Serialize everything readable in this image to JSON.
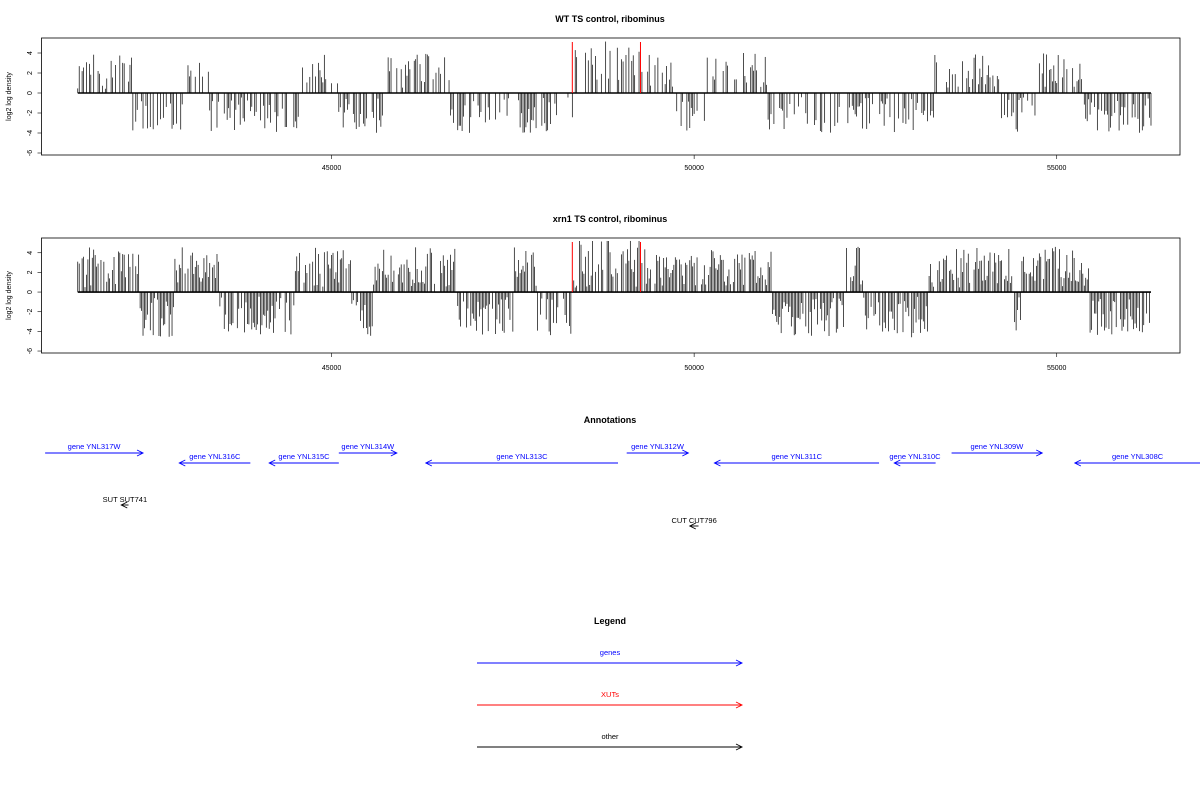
{
  "colors": {
    "gene": "#0000ff",
    "xut": "#ff0000",
    "other": "#000000",
    "frame": "#000000",
    "xut_marker": "#ff0000"
  },
  "chart_data": [
    {
      "type": "bar",
      "title": "WT TS control, ribominus",
      "ylabel": "log2 log density",
      "xlim": [
        41000,
        56700
      ],
      "ylim": [
        -6.2,
        5.5
      ],
      "xticks": [
        "45000",
        "50000",
        "55000"
      ],
      "yticks": [
        "4",
        "2",
        "0",
        "-2",
        "-4",
        "-6"
      ],
      "xut_markers": [
        48320,
        49260
      ],
      "coverage_region": [
        41500,
        56300
      ]
    },
    {
      "type": "bar",
      "title": "xrn1 TS control, ribominus",
      "ylabel": "log2 log density",
      "xlim": [
        41000,
        56700
      ],
      "ylim": [
        -6.2,
        5.5
      ],
      "xticks": [
        "45000",
        "50000",
        "55000"
      ],
      "yticks": [
        "4",
        "2",
        "0",
        "-2",
        "-4",
        "-6"
      ],
      "xut_markers": [
        48320,
        49260
      ],
      "coverage_region": [
        41500,
        56300
      ]
    }
  ],
  "annotations": {
    "title": "Annotations",
    "genes": [
      {
        "label": "gene YNL317W",
        "start": 41050,
        "end": 42400,
        "strand": "+"
      },
      {
        "label": "gene YNL316C",
        "start": 42900,
        "end": 43880,
        "strand": "-"
      },
      {
        "label": "gene YNL315C",
        "start": 44140,
        "end": 45100,
        "strand": "-"
      },
      {
        "label": "gene YNL314W",
        "start": 45100,
        "end": 45900,
        "strand": "+"
      },
      {
        "label": "gene YNL313C",
        "start": 46300,
        "end": 48950,
        "strand": "-"
      },
      {
        "label": "gene YNL312W",
        "start": 49070,
        "end": 49920,
        "strand": "+"
      },
      {
        "label": "gene YNL311C",
        "start": 50280,
        "end": 52550,
        "strand": "-"
      },
      {
        "label": "gene YNL310C",
        "start": 52760,
        "end": 53330,
        "strand": "-"
      },
      {
        "label": "gene YNL309W",
        "start": 53550,
        "end": 54800,
        "strand": "+"
      },
      {
        "label": "gene YNL308C",
        "start": 55250,
        "end": 56980,
        "strand": "-"
      }
    ],
    "others": [
      {
        "label": "SUT SUT741",
        "start": 42100,
        "end": 42200,
        "strand": "-"
      },
      {
        "label": "CUT CUT796",
        "start": 49940,
        "end": 50060,
        "strand": "-"
      }
    ]
  },
  "legend": {
    "title": "Legend",
    "items": [
      {
        "label": "genes",
        "color_key": "gene"
      },
      {
        "label": "XUTs",
        "color_key": "xut"
      },
      {
        "label": "other",
        "color_key": "other"
      }
    ]
  }
}
